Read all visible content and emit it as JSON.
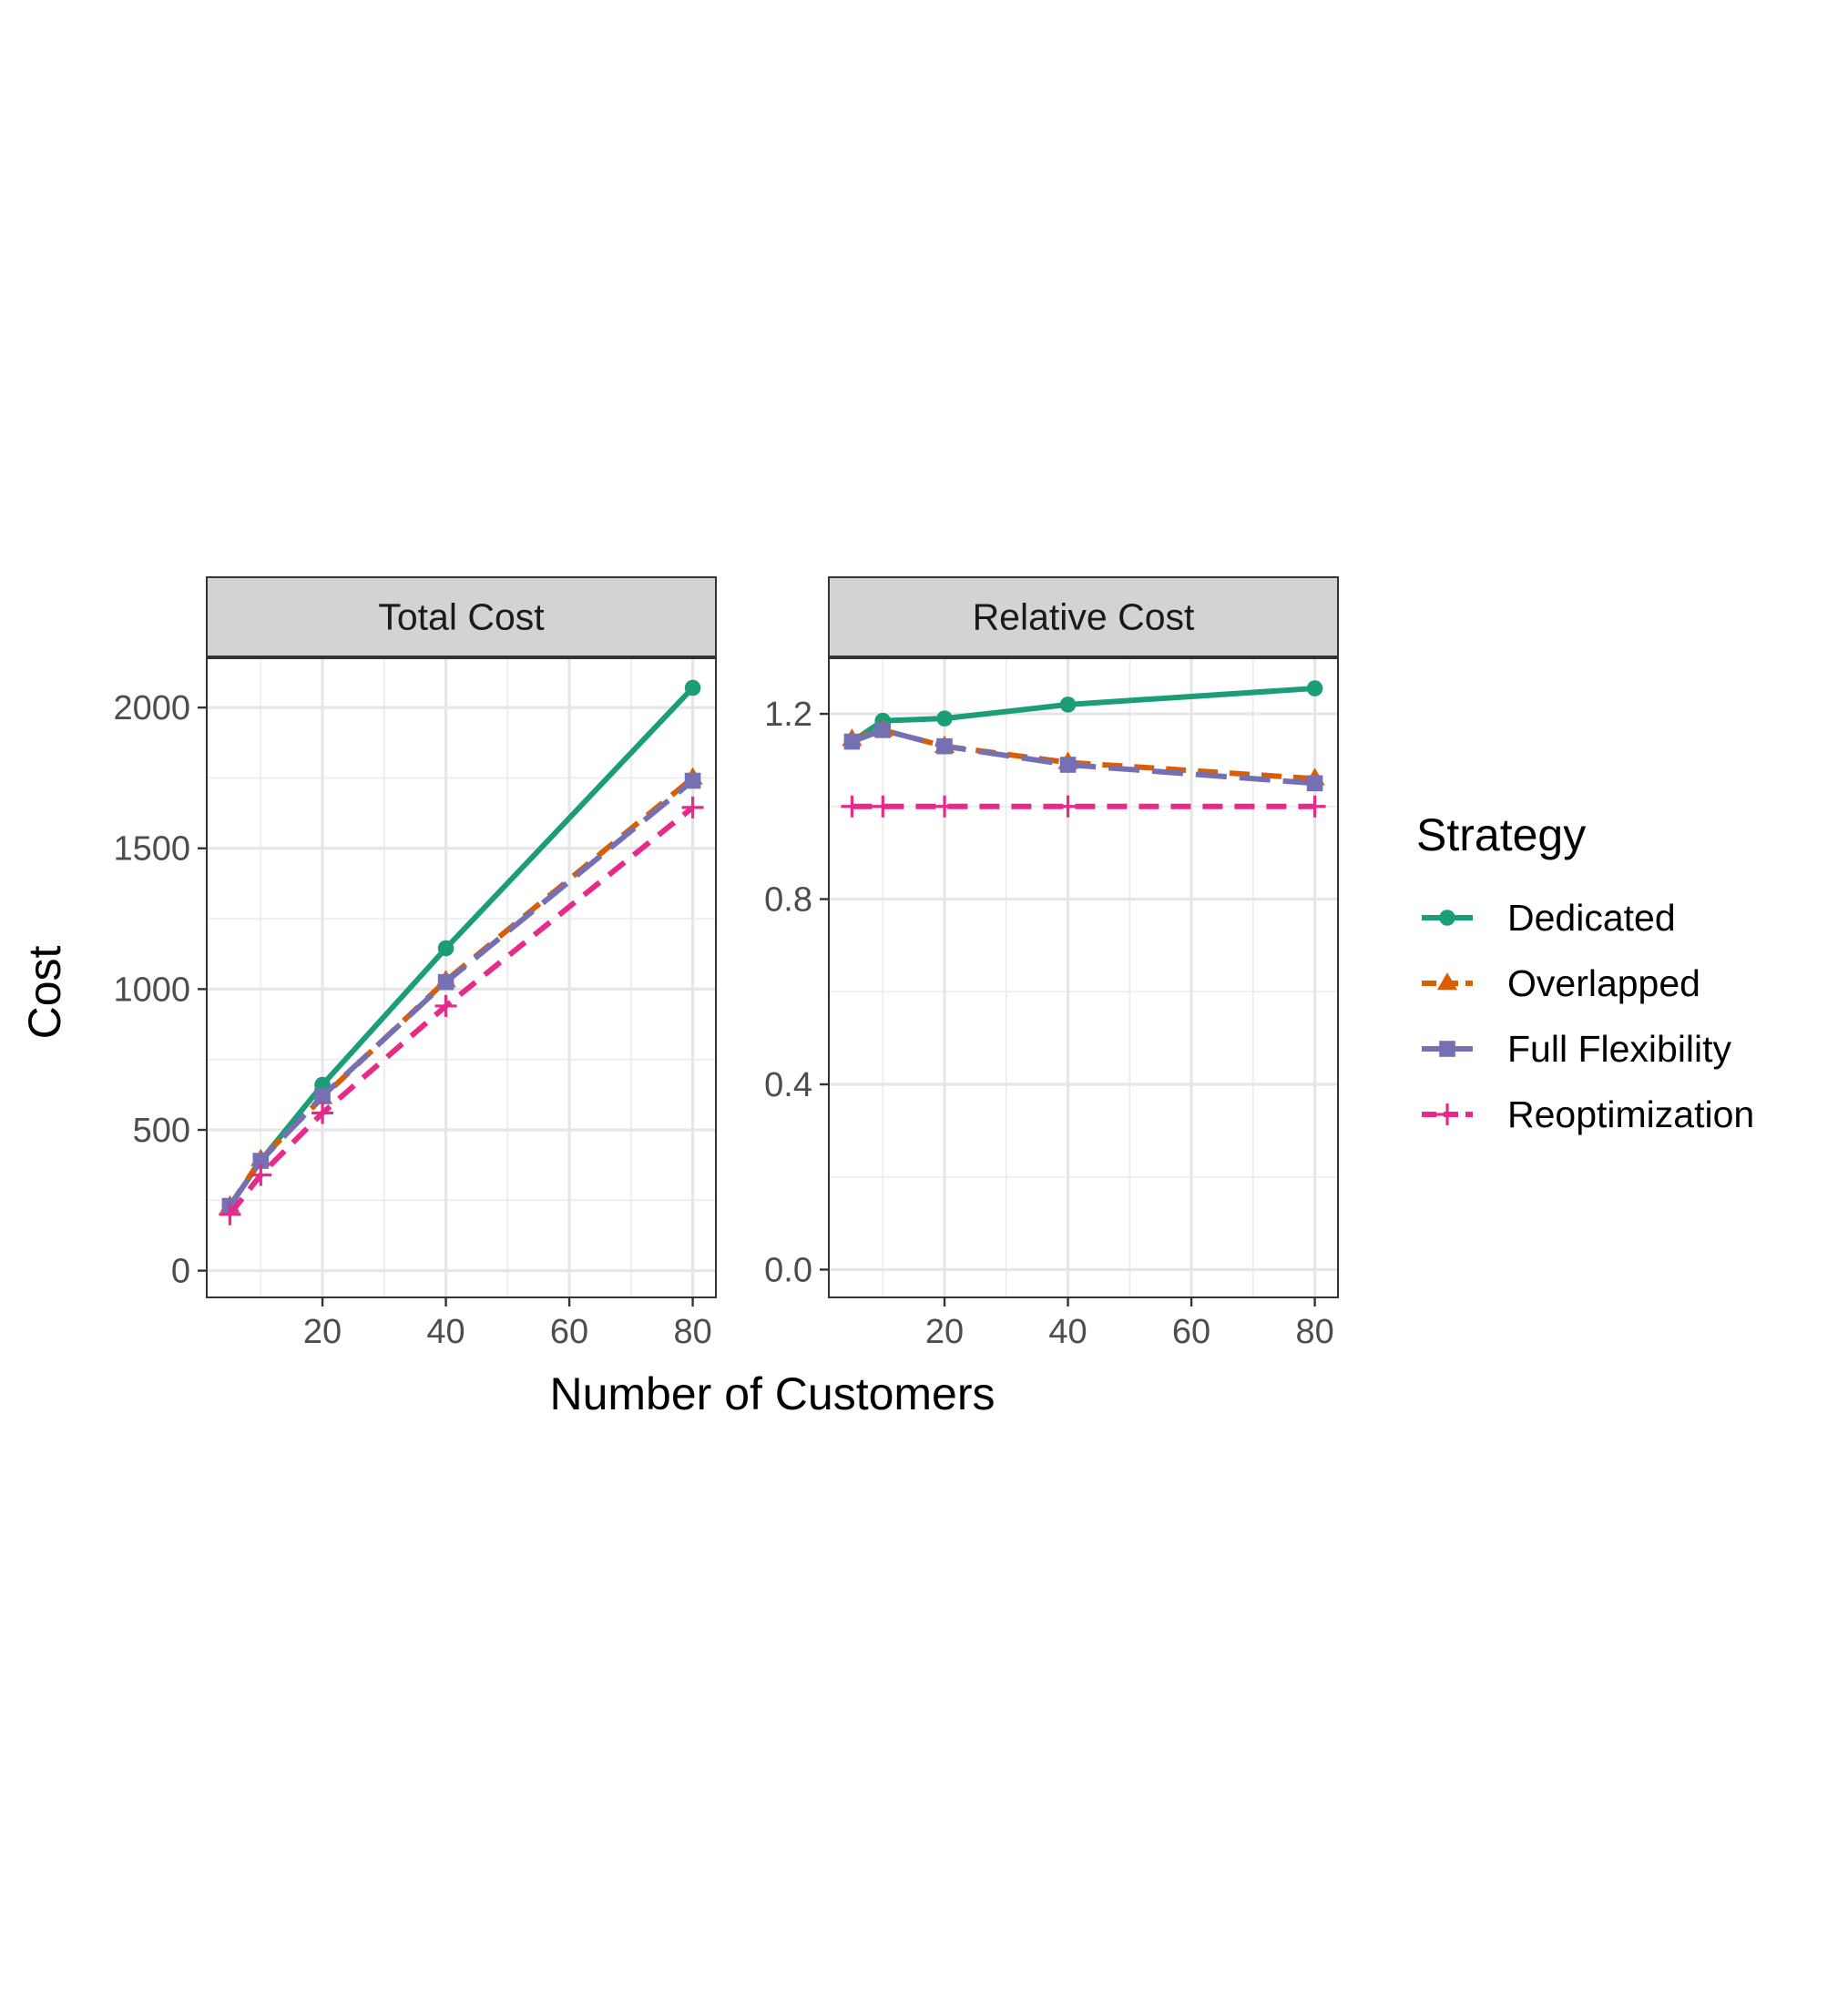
{
  "figure": {
    "shared_xlabel": "Number of Customers",
    "shared_ylabel": "Cost",
    "legend": {
      "title": "Strategy",
      "placement": "right",
      "entries": [
        {
          "name": "Dedicated",
          "color": "#1b9e77",
          "marker": "circle",
          "line": "solid"
        },
        {
          "name": "Overlapped",
          "color": "#d95f02",
          "marker": "triangle",
          "line": "dashed"
        },
        {
          "name": "Full Flexibility",
          "color": "#7570b3",
          "marker": "square",
          "line": "longdash"
        },
        {
          "name": "Reoptimization",
          "color": "#e7298a",
          "marker": "plus",
          "line": "dashed"
        }
      ]
    }
  },
  "chart_data": [
    {
      "type": "line",
      "title": "Total Cost",
      "xlabel": "Number of Customers",
      "ylabel": "Cost",
      "xlim": [
        1.25,
        83.75
      ],
      "ylim": [
        -95,
        2175
      ],
      "xticks": [
        20,
        40,
        60,
        80
      ],
      "yticks": [
        0,
        500,
        1000,
        1500,
        2000
      ],
      "grid": true,
      "series": [
        {
          "name": "Dedicated",
          "x": [
            5,
            10,
            20,
            40,
            80
          ],
          "y": [
            230,
            390,
            660,
            1145,
            2070
          ]
        },
        {
          "name": "Overlapped",
          "x": [
            5,
            10,
            20,
            40,
            80
          ],
          "y": [
            230,
            395,
            615,
            1030,
            1750
          ]
        },
        {
          "name": "Full Flexibility",
          "x": [
            5,
            10,
            20,
            40,
            80
          ],
          "y": [
            230,
            390,
            620,
            1025,
            1740
          ]
        },
        {
          "name": "Reoptimization",
          "x": [
            5,
            10,
            20,
            40,
            80
          ],
          "y": [
            200,
            340,
            560,
            940,
            1645
          ]
        }
      ]
    },
    {
      "type": "line",
      "title": "Relative Cost",
      "xlabel": "Number of Customers",
      "ylabel": "Cost",
      "xlim": [
        1.25,
        83.75
      ],
      "ylim": [
        -0.06,
        1.32
      ],
      "xticks": [
        20,
        40,
        60,
        80
      ],
      "yticks": [
        0.0,
        0.4,
        0.8,
        1.2
      ],
      "yticklabels": [
        "0.0",
        "0.4",
        "0.8",
        "1.2"
      ],
      "grid": true,
      "series": [
        {
          "name": "Dedicated",
          "x": [
            5,
            10,
            20,
            40,
            80
          ],
          "y": [
            1.14,
            1.185,
            1.19,
            1.22,
            1.255
          ]
        },
        {
          "name": "Overlapped",
          "x": [
            5,
            10,
            20,
            40,
            80
          ],
          "y": [
            1.145,
            1.165,
            1.13,
            1.095,
            1.06
          ]
        },
        {
          "name": "Full Flexibility",
          "x": [
            5,
            10,
            20,
            40,
            80
          ],
          "y": [
            1.14,
            1.165,
            1.13,
            1.09,
            1.05
          ]
        },
        {
          "name": "Reoptimization",
          "x": [
            5,
            10,
            20,
            40,
            80
          ],
          "y": [
            1.0,
            1.0,
            1.0,
            1.0,
            1.0
          ]
        }
      ]
    }
  ]
}
